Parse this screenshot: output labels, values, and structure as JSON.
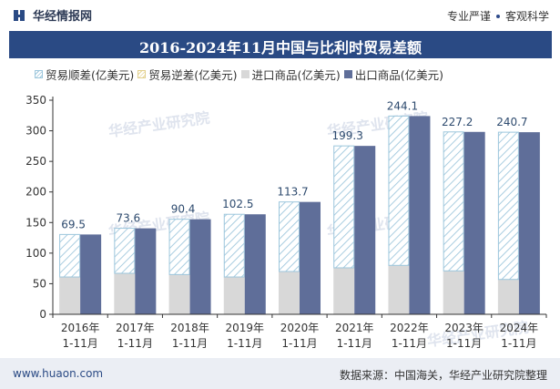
{
  "brand": {
    "name": "华经情报网",
    "slogan_a": "专业严谨",
    "slogan_b": "客观科学"
  },
  "chart_data": {
    "type": "bar",
    "title": "2016-2024年11月中国与比利时贸易差额",
    "categories": [
      [
        "2016年",
        "1-11月"
      ],
      [
        "2017年",
        "1-11月"
      ],
      [
        "2018年",
        "1-11月"
      ],
      [
        "2019年",
        "1-11月"
      ],
      [
        "2020年",
        "1-11月"
      ],
      [
        "2021年",
        "1-11月"
      ],
      [
        "2022年",
        "1-11月"
      ],
      [
        "2023年",
        "1-11月"
      ],
      [
        "2024年",
        "1-11月"
      ]
    ],
    "series": [
      {
        "name": "贸易顺差(亿美元)",
        "values": [
          69.5,
          73.6,
          90.4,
          102.5,
          113.7,
          199.3,
          244.1,
          227.2,
          240.7
        ]
      },
      {
        "name": "贸易逆差(亿美元)",
        "values": [
          0,
          0,
          0,
          0,
          0,
          0,
          0,
          0,
          0
        ]
      },
      {
        "name": "进口商品(亿美元)",
        "values": [
          61,
          67,
          65,
          61,
          70,
          76,
          80,
          71,
          57
        ]
      },
      {
        "name": "出口商品(亿美元)",
        "values": [
          130.5,
          140.6,
          155.4,
          163.5,
          183.7,
          275.3,
          324.1,
          298.2,
          297.7
        ]
      }
    ],
    "ylim": [
      0,
      350
    ],
    "yticks": [
      0,
      50,
      100,
      150,
      200,
      250,
      300,
      350
    ],
    "grid": false,
    "legend": "top-left",
    "colors": {
      "surplus": "#9cc6dc",
      "deficit": "#e7d79b",
      "import": "#d8d8d8",
      "export": "#5f6e99",
      "label": "#2d4a6e"
    }
  },
  "watermark": {
    "cn": "华经产业研究院",
    "en": "www.huaon.com"
  },
  "footer": {
    "site": "www.huaon.com",
    "source": "数据来源：中国海关，华经产业研究院整理"
  }
}
